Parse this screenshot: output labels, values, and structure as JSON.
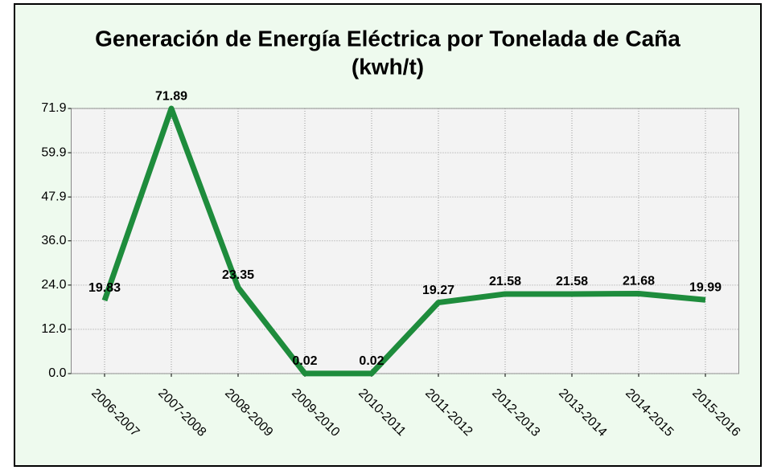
{
  "chart_data": {
    "type": "line",
    "title": "Generación de Energía Eléctrica por Tonelada de Caña",
    "subtitle": "(kwh/t)",
    "categories": [
      "2006-2007",
      "2007-2008",
      "2008-2009",
      "2009-2010",
      "2010-2011",
      "2011-2012",
      "2012-2013",
      "2013-2014",
      "2014-2015",
      "2015-2016"
    ],
    "values": [
      19.83,
      71.89,
      23.35,
      0.02,
      0.02,
      19.27,
      21.58,
      21.58,
      21.68,
      19.99
    ],
    "color": "#1e8c3c",
    "ylim": [
      0,
      71.9
    ],
    "yticks": [
      {
        "value": 0,
        "label": "0.0"
      },
      {
        "value": 12,
        "label": "12.0"
      },
      {
        "value": 24,
        "label": "24.0"
      },
      {
        "value": 36,
        "label": "36.0"
      },
      47.9,
      59.9,
      71.9
    ],
    "grid": true
  }
}
